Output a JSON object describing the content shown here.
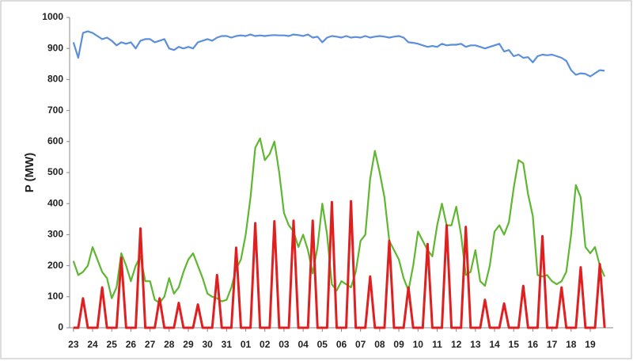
{
  "chart_data": {
    "type": "line",
    "y_label": "P (MW)",
    "x": [
      0,
      0.25,
      0.5,
      0.75,
      1,
      1.25,
      1.5,
      1.75,
      2,
      2.25,
      2.5,
      2.75,
      3,
      3.25,
      3.5,
      3.75,
      4,
      4.25,
      4.5,
      4.75,
      5,
      5.25,
      5.5,
      5.75,
      6,
      6.25,
      6.5,
      6.75,
      7,
      7.25,
      7.5,
      7.75,
      8,
      8.25,
      8.5,
      8.75,
      9,
      9.25,
      9.5,
      9.75,
      10,
      10.25,
      10.5,
      10.75,
      11,
      11.25,
      11.5,
      11.75,
      12,
      12.25,
      12.5,
      12.75,
      13,
      13.25,
      13.5,
      13.75,
      14,
      14.25,
      14.5,
      14.75,
      15,
      15.25,
      15.5,
      15.75,
      16,
      16.25,
      16.5,
      16.75,
      17,
      17.25,
      17.5,
      17.75,
      18,
      18.25,
      18.5,
      18.75,
      19,
      19.25,
      19.5,
      19.75,
      20,
      20.25,
      20.5,
      20.75,
      21,
      21.25,
      21.5,
      21.75,
      22,
      22.25,
      22.5,
      22.75,
      23,
      23.25,
      23.5,
      23.75,
      24,
      24.25,
      24.5,
      24.75,
      25,
      25.25,
      25.5,
      25.75,
      26,
      26.25,
      26.5,
      26.75,
      27,
      27.25,
      27.5,
      27.75
    ],
    "xlim": [
      -0.2,
      28.2
    ],
    "xticks": [
      {
        "value": 0,
        "label": "23"
      },
      {
        "value": 1,
        "label": "24"
      },
      {
        "value": 2,
        "label": "25"
      },
      {
        "value": 3,
        "label": "26"
      },
      {
        "value": 4,
        "label": "27"
      },
      {
        "value": 5,
        "label": "28"
      },
      {
        "value": 6,
        "label": "29"
      },
      {
        "value": 7,
        "label": "30"
      },
      {
        "value": 8,
        "label": "31"
      },
      {
        "value": 9,
        "label": "01"
      },
      {
        "value": 10,
        "label": "02"
      },
      {
        "value": 11,
        "label": "03"
      },
      {
        "value": 12,
        "label": "04"
      },
      {
        "value": 13,
        "label": "05"
      },
      {
        "value": 14,
        "label": "06"
      },
      {
        "value": 15,
        "label": "07"
      },
      {
        "value": 16,
        "label": "08"
      },
      {
        "value": 17,
        "label": "09"
      },
      {
        "value": 18,
        "label": "10"
      },
      {
        "value": 19,
        "label": "11"
      },
      {
        "value": 20,
        "label": "12"
      },
      {
        "value": 21,
        "label": "13"
      },
      {
        "value": 22,
        "label": "14"
      },
      {
        "value": 23,
        "label": "15"
      },
      {
        "value": 24,
        "label": "16"
      },
      {
        "value": 25,
        "label": "17"
      },
      {
        "value": 26,
        "label": "18"
      },
      {
        "value": 27,
        "label": "19"
      }
    ],
    "ylim": [
      0,
      1000
    ],
    "yticks": [
      0,
      100,
      200,
      300,
      400,
      500,
      600,
      700,
      800,
      900,
      1000
    ],
    "series": [
      {
        "color": "#5b8fdc",
        "values": [
          920,
          870,
          950,
          955,
          950,
          940,
          930,
          935,
          925,
          910,
          920,
          915,
          920,
          900,
          925,
          930,
          930,
          920,
          925,
          930,
          900,
          895,
          905,
          900,
          905,
          900,
          920,
          925,
          930,
          925,
          935,
          940,
          940,
          935,
          940,
          942,
          940,
          945,
          940,
          942,
          940,
          942,
          943,
          942,
          942,
          940,
          945,
          943,
          940,
          945,
          935,
          938,
          920,
          935,
          940,
          938,
          935,
          940,
          935,
          937,
          935,
          940,
          935,
          938,
          940,
          938,
          935,
          938,
          940,
          935,
          920,
          918,
          915,
          910,
          905,
          908,
          905,
          915,
          910,
          912,
          912,
          915,
          905,
          910,
          910,
          905,
          900,
          905,
          910,
          915,
          890,
          895,
          875,
          880,
          870,
          872,
          855,
          875,
          880,
          878,
          880,
          875,
          870,
          860,
          830,
          815,
          820,
          818,
          810,
          820,
          830,
          828
        ]
      },
      {
        "color": "#5fb731",
        "values": [
          215,
          170,
          180,
          200,
          260,
          220,
          180,
          160,
          95,
          130,
          240,
          200,
          150,
          200,
          230,
          150,
          150,
          90,
          80,
          100,
          160,
          110,
          130,
          180,
          220,
          240,
          200,
          160,
          110,
          100,
          95,
          85,
          90,
          130,
          190,
          220,
          300,
          420,
          580,
          610,
          540,
          560,
          600,
          500,
          370,
          330,
          310,
          260,
          300,
          250,
          175,
          260,
          400,
          300,
          140,
          120,
          150,
          140,
          130,
          180,
          280,
          300,
          480,
          570,
          500,
          420,
          280,
          250,
          220,
          160,
          120,
          200,
          310,
          280,
          250,
          230,
          330,
          400,
          330,
          330,
          390,
          300,
          170,
          180,
          250,
          150,
          135,
          200,
          310,
          330,
          300,
          340,
          450,
          540,
          530,
          430,
          360,
          170,
          165,
          170,
          150,
          140,
          150,
          180,
          300,
          460,
          420,
          260,
          240,
          260,
          200,
          165
        ]
      },
      {
        "color": "#e02020",
        "values": [
          0,
          0,
          95,
          0,
          0,
          0,
          130,
          0,
          0,
          0,
          225,
          0,
          0,
          0,
          320,
          0,
          0,
          0,
          95,
          0,
          0,
          0,
          80,
          0,
          0,
          0,
          75,
          0,
          0,
          0,
          170,
          0,
          0,
          0,
          258,
          0,
          0,
          0,
          337,
          0,
          0,
          0,
          343,
          0,
          0,
          0,
          345,
          0,
          0,
          0,
          345,
          0,
          0,
          0,
          405,
          0,
          0,
          0,
          408,
          0,
          0,
          0,
          165,
          0,
          0,
          0,
          280,
          0,
          0,
          0,
          130,
          0,
          0,
          0,
          270,
          0,
          0,
          0,
          330,
          0,
          0,
          0,
          325,
          0,
          0,
          0,
          90,
          0,
          0,
          0,
          78,
          0,
          0,
          0,
          135,
          0,
          0,
          0,
          295,
          0,
          0,
          0,
          130,
          0,
          0,
          0,
          195,
          0,
          0,
          0,
          205,
          0
        ]
      }
    ]
  }
}
